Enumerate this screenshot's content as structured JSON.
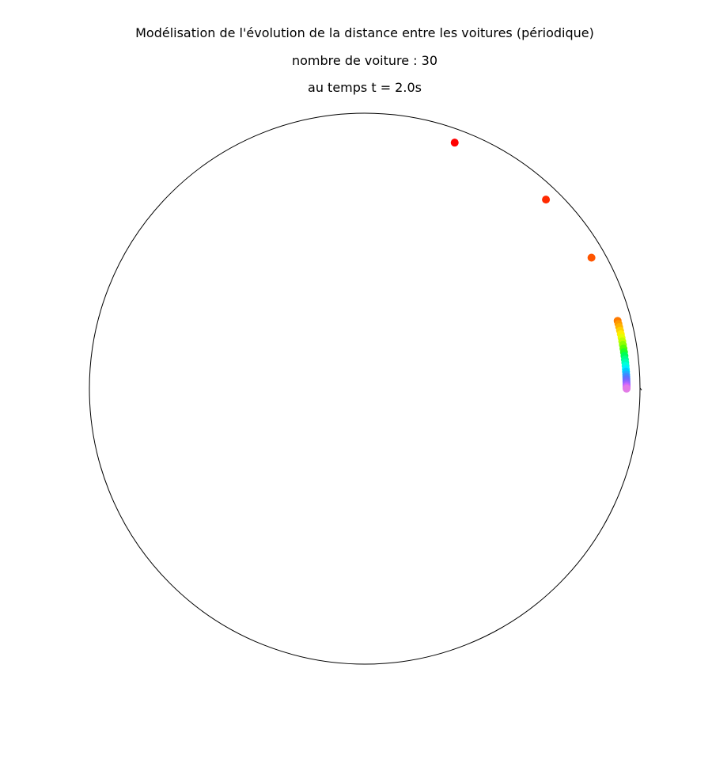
{
  "chart_data": {
    "type": "scatter",
    "title": "Modélisation de l'évolution de la distance entre les voitures (périodique)",
    "subtitle": "nombre de voiture : 30",
    "time_label": "au temps t = 2.0s",
    "track": "circle",
    "radius": 1.0,
    "xlim": [
      -1.0,
      1.0
    ],
    "ylim": [
      -1.0,
      1.0
    ],
    "grid": false,
    "axes_visible": false,
    "cars": [
      {
        "angle_deg": 69.9,
        "color": "#ff0000"
      },
      {
        "angle_deg": 46.2,
        "color": "#ff2a00"
      },
      {
        "angle_deg": 30.0,
        "color": "#ff5500"
      },
      {
        "angle_deg": 15.0,
        "color": "#ff7a00"
      },
      {
        "angle_deg": 14.3,
        "color": "#ff9900"
      },
      {
        "angle_deg": 13.6,
        "color": "#ffb300"
      },
      {
        "angle_deg": 12.8,
        "color": "#ffd000"
      },
      {
        "angle_deg": 12.0,
        "color": "#ffee00"
      },
      {
        "angle_deg": 11.2,
        "color": "#e6ff00"
      },
      {
        "angle_deg": 10.4,
        "color": "#bfff00"
      },
      {
        "angle_deg": 9.6,
        "color": "#8cff00"
      },
      {
        "angle_deg": 8.8,
        "color": "#55ff00"
      },
      {
        "angle_deg": 8.0,
        "color": "#22ff22"
      },
      {
        "angle_deg": 7.2,
        "color": "#00ff55"
      },
      {
        "angle_deg": 6.4,
        "color": "#00ff88"
      },
      {
        "angle_deg": 5.7,
        "color": "#00ffb3"
      },
      {
        "angle_deg": 5.0,
        "color": "#00ffdd"
      },
      {
        "angle_deg": 4.3,
        "color": "#00eeff"
      },
      {
        "angle_deg": 3.7,
        "color": "#00ccff"
      },
      {
        "angle_deg": 3.1,
        "color": "#22aaff"
      },
      {
        "angle_deg": 2.6,
        "color": "#3d8cff"
      },
      {
        "angle_deg": 2.1,
        "color": "#5577ff"
      },
      {
        "angle_deg": 1.7,
        "color": "#6a6cff"
      },
      {
        "angle_deg": 1.3,
        "color": "#7f66ff"
      },
      {
        "angle_deg": 1.0,
        "color": "#9466ff"
      },
      {
        "angle_deg": 0.7,
        "color": "#a866ff"
      },
      {
        "angle_deg": 0.5,
        "color": "#bb66ff"
      },
      {
        "angle_deg": 0.3,
        "color": "#cc66ff"
      },
      {
        "angle_deg": 0.15,
        "color": "#d96af0"
      },
      {
        "angle_deg": 0.0,
        "color": "#e27ae6"
      }
    ]
  }
}
